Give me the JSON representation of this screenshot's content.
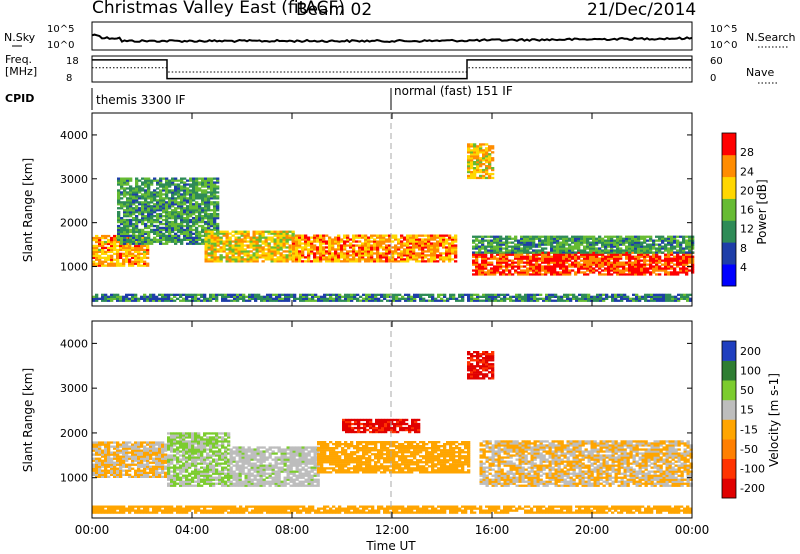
{
  "header": {
    "title": "Christmas Valley East (fitACF)",
    "beam": "Beam 02",
    "date": "21/Dec/2014"
  },
  "status_panels": {
    "nsky_label": "N.Sky",
    "nsearch_label": "N.Search",
    "freq_label_line1": "Freq.",
    "freq_label_line2": "[MHz]",
    "nave_label": "Nave",
    "cpid_label": "CPID",
    "noise_left_ticks": [
      "10^5",
      "10^0"
    ],
    "noise_right_ticks": [
      "10^5",
      "10^0"
    ],
    "freq_left_ticks": [
      "18",
      "8"
    ],
    "freq_right_ticks": [
      "60",
      "0"
    ],
    "cpid_segments": [
      {
        "label": "themis 3300 IF",
        "start": 0
      },
      {
        "label": "normal (fast) 151 IF",
        "start": 12
      }
    ],
    "freq_profile": [
      [
        0,
        16.5
      ],
      [
        3,
        16.5
      ],
      [
        3,
        9.3
      ],
      [
        15,
        9.3
      ],
      [
        15,
        16.5
      ],
      [
        24,
        16.5
      ]
    ],
    "nave_profile": [
      [
        0,
        33
      ],
      [
        3,
        33
      ],
      [
        3,
        23
      ],
      [
        15,
        23
      ],
      [
        15,
        33
      ],
      [
        24,
        33
      ]
    ]
  },
  "chart_data": [
    {
      "type": "heatmap",
      "parameter": "power",
      "ylabel": "Slant Range [km]",
      "ylim": [
        100,
        4500
      ],
      "yticks": [
        "1000",
        "2000",
        "3000",
        "4000"
      ],
      "xlim": [
        0,
        24
      ],
      "colorbar": {
        "label": "Power [dB]",
        "range": [
          0,
          30
        ],
        "ticks": [
          "4",
          "8",
          "12",
          "16",
          "20",
          "24",
          "28"
        ],
        "colors": [
          "#0000ff",
          "#1e3ea8",
          "#2e8b57",
          "#66bb33",
          "#ffd700",
          "#ff8c00",
          "#ff0000"
        ]
      },
      "echo_regions": [
        {
          "t_start": 0.0,
          "t_end": 2.2,
          "range_start": 1000,
          "range_end": 1700,
          "value": 22
        },
        {
          "t_start": 1.0,
          "t_end": 5.0,
          "range_start": 1500,
          "range_end": 3000,
          "value": 12
        },
        {
          "t_start": 4.5,
          "t_end": 8.0,
          "range_start": 1100,
          "range_end": 1800,
          "value": 20
        },
        {
          "t_start": 8.0,
          "t_end": 14.5,
          "range_start": 1100,
          "range_end": 1700,
          "value": 23
        },
        {
          "t_start": 15.2,
          "t_end": 24.0,
          "range_start": 800,
          "range_end": 1300,
          "value": 27
        },
        {
          "t_start": 15.2,
          "t_end": 24.0,
          "range_start": 1300,
          "range_end": 1700,
          "value": 12
        },
        {
          "t_start": 15.0,
          "t_end": 16.0,
          "range_start": 3000,
          "range_end": 3800,
          "value": 20
        },
        {
          "t_start": 0.0,
          "t_end": 24.0,
          "range_start": 200,
          "range_end": 350,
          "value": 10
        }
      ]
    },
    {
      "type": "heatmap",
      "parameter": "velocity",
      "ylabel": "Slant Range [km]",
      "ylim": [
        100,
        4500
      ],
      "yticks": [
        "1000",
        "2000",
        "3000",
        "4000"
      ],
      "xlim": [
        0,
        24
      ],
      "xlabel": "Time UT",
      "xticks": [
        "00:00",
        "04:00",
        "08:00",
        "12:00",
        "16:00",
        "20:00",
        "00:00"
      ],
      "colorbar": {
        "label": "Velocity [m s-1]",
        "range": [
          -250,
          250
        ],
        "ticks": [
          "200",
          "100",
          "50",
          "15",
          "-15",
          "-50",
          "-100",
          "-200"
        ],
        "colors": [
          "#1f3fbf",
          "#2e7d32",
          "#7ccc2e",
          "#bdbdbd",
          "#ffa500",
          "#ff7f00",
          "#ff3300",
          "#e00000"
        ]
      },
      "echo_regions": [
        {
          "t_start": 0.0,
          "t_end": 3.0,
          "range_start": 1000,
          "range_end": 1800,
          "value": 0
        },
        {
          "t_start": 3.0,
          "t_end": 5.5,
          "range_start": 800,
          "range_end": 2000,
          "value": 70
        },
        {
          "t_start": 5.5,
          "t_end": 9.0,
          "range_start": 800,
          "range_end": 1700,
          "value": 40
        },
        {
          "t_start": 9.0,
          "t_end": 15.0,
          "range_start": 1100,
          "range_end": 1800,
          "value": -30
        },
        {
          "t_start": 15.5,
          "t_end": 24.0,
          "range_start": 800,
          "range_end": 1800,
          "value": 0
        },
        {
          "t_start": 15.0,
          "t_end": 16.0,
          "range_start": 3200,
          "range_end": 3800,
          "value": -200
        },
        {
          "t_start": 10.0,
          "t_end": 13.0,
          "range_start": 2000,
          "range_end": 2300,
          "value": -200
        },
        {
          "t_start": 0.0,
          "t_end": 24.0,
          "range_start": 200,
          "range_end": 350,
          "value": -30
        }
      ]
    }
  ]
}
